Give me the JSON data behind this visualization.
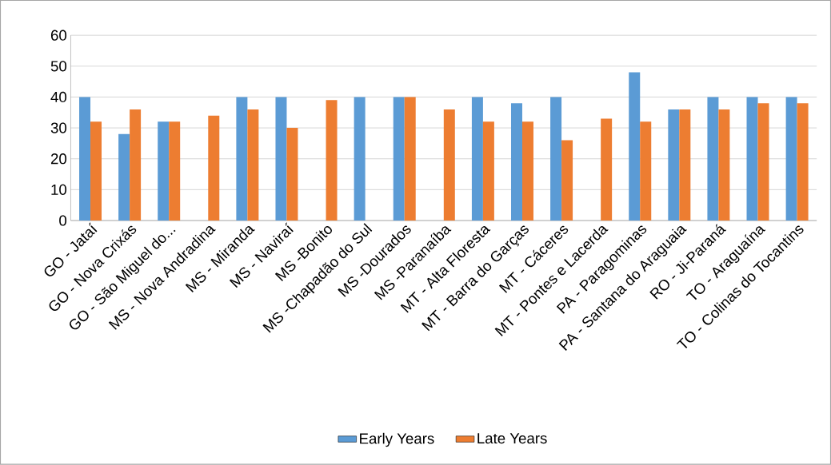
{
  "chart_data": {
    "type": "bar",
    "categories": [
      "GO - Jataí",
      "GO - Nova Crixás",
      "GO - São Miguel do...",
      "MS -  Nova Andradina",
      "MS - Miranda",
      "MS - Naviraí",
      "MS -Bonito",
      "MS -Chapadão do Sul",
      "MS -Dourados",
      "MS -Paranaíba",
      "MT - Alta Floresta",
      "MT - Barra do Garças",
      "MT - Cáceres",
      "MT - Pontes e Lacerda",
      "PA - Paragominas",
      "PA - Santana do Araguaia",
      "RO - Ji-Paraná",
      "TO - Araguaína",
      "TO - Colinas do Tocantins"
    ],
    "series": [
      {
        "name": "Early Years",
        "color": "#5b9bd5",
        "values": [
          40,
          28,
          32,
          null,
          40,
          40,
          null,
          40,
          40,
          null,
          40,
          38,
          40,
          null,
          48,
          36,
          40,
          40,
          40
        ]
      },
      {
        "name": "Late Years",
        "color": "#ed7d31",
        "values": [
          32,
          36,
          32,
          34,
          36,
          30,
          39,
          null,
          40,
          36,
          32,
          32,
          26,
          33,
          32,
          36,
          36,
          38,
          38
        ]
      }
    ],
    "ylim": [
      0,
      60
    ],
    "yticks": [
      0,
      10,
      20,
      30,
      40,
      50,
      60
    ],
    "grid": "y",
    "legend": "bottom"
  }
}
